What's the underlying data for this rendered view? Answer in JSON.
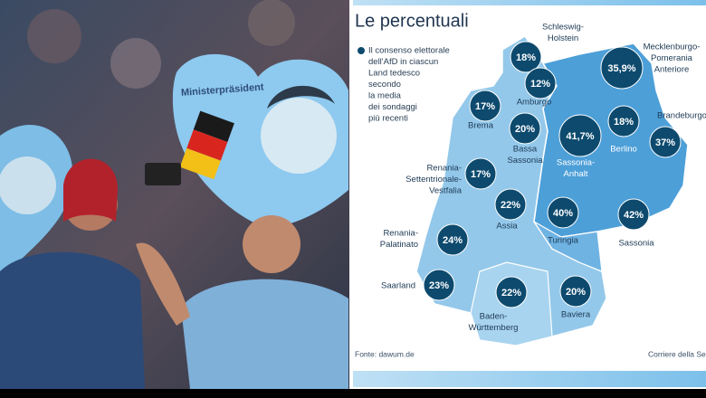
{
  "photo": {
    "sign_text": "Ministerpräsident"
  },
  "infographic": {
    "title": "Le percentuali",
    "legend": [
      "Il consenso elettorale",
      "dell'AfD in ciascun",
      "Land tedesco",
      "secondo",
      "la media",
      "dei sondaggi",
      "più recenti"
    ],
    "regions": [
      {
        "name": [
          "Schleswig-",
          "Holstein"
        ],
        "value": 18,
        "label": "18%"
      },
      {
        "name": [
          "Mecklenburgo-",
          "Pomerania",
          "Anteriore"
        ],
        "value": 35.9,
        "label": "35,9%"
      },
      {
        "name": [
          "Amburgo"
        ],
        "value": 12,
        "label": "12%"
      },
      {
        "name": [
          "Brema"
        ],
        "value": 17,
        "label": "17%"
      },
      {
        "name": [
          "Bassa",
          "Sassonia"
        ],
        "value": 20,
        "label": "20%"
      },
      {
        "name": [
          "Sassonia-",
          "Anhalt"
        ],
        "value": 41.7,
        "label": "41,7%"
      },
      {
        "name": [
          "Berlino"
        ],
        "value": 18,
        "label": "18%"
      },
      {
        "name": [
          "Brandeburgo"
        ],
        "value": 37,
        "label": "37%"
      },
      {
        "name": [
          "Renania-",
          "Settentrionale-",
          "Vestfalia"
        ],
        "value": 17,
        "label": "17%"
      },
      {
        "name": [
          "Assia"
        ],
        "value": 22,
        "label": "22%"
      },
      {
        "name": [
          "Turingia"
        ],
        "value": 40,
        "label": "40%"
      },
      {
        "name": [
          "Sassonia"
        ],
        "value": 42,
        "label": "42%"
      },
      {
        "name": [
          "Renania-",
          "Palatinato"
        ],
        "value": 24,
        "label": "24%"
      },
      {
        "name": [
          "Saarland"
        ],
        "value": 23,
        "label": "23%"
      },
      {
        "name": [
          "Baden-",
          "Württemberg"
        ],
        "value": 22,
        "label": "22%"
      },
      {
        "name": [
          "Baviera"
        ],
        "value": 20,
        "label": "20%"
      }
    ],
    "source": "Fonte: dawum.de",
    "credit": "Corriere della Sera"
  }
}
